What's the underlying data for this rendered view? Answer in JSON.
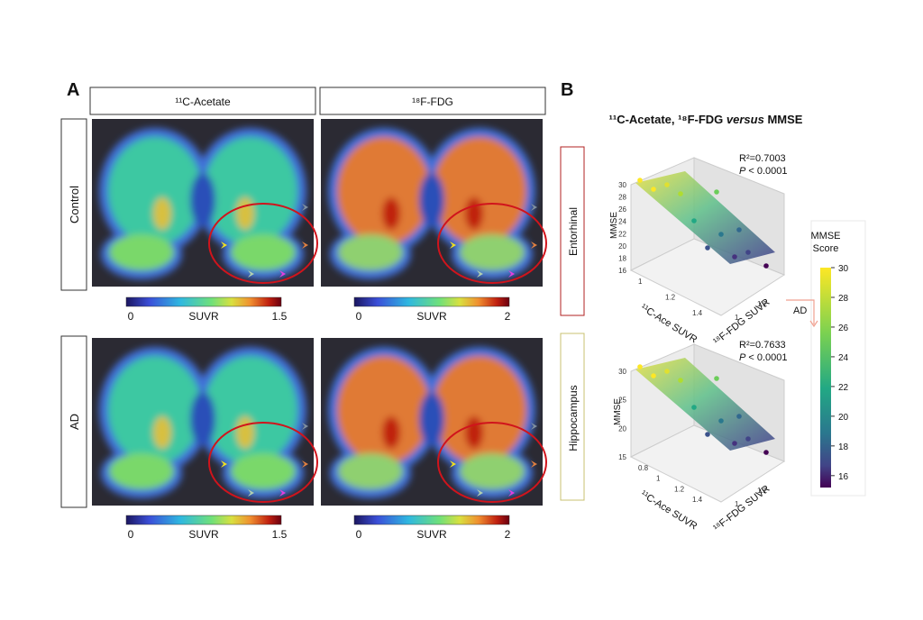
{
  "panel_a": {
    "label": "A",
    "columns": [
      "¹¹C-Acetate",
      "¹⁸F-FDG"
    ],
    "rows": [
      "Control",
      "AD"
    ],
    "colorbars": [
      [
        {
          "min": 0,
          "label": "SUVR",
          "max": 1.5
        },
        {
          "min": 0,
          "label": "SUVR",
          "max": 2
        }
      ],
      [
        {
          "min": 0,
          "label": "SUVR",
          "max": 1.5
        },
        {
          "min": 0,
          "label": "SUVR",
          "max": 2
        }
      ]
    ]
  },
  "panel_b": {
    "label": "B",
    "title": {
      "prefix": "¹¹C-Acetate, ¹⁸F-FDG ",
      "italic": "versus",
      "suffix": " MMSE"
    },
    "plots": [
      {
        "region": "Entorhinal",
        "r2": "R²=0.7003",
        "p_italic": "P",
        "p_rest": " < 0.0001",
        "z_label": "MMSE",
        "x_label": "¹¹C-Ace SUVR",
        "y_label": "¹⁸F-FDG SUVR",
        "z_ticks": [
          30,
          28,
          26,
          24,
          22,
          20,
          18,
          16
        ],
        "x_ticks": [
          1,
          1.2,
          1.4
        ],
        "y_ticks": [
          1,
          1.2
        ]
      },
      {
        "region": "Hippocampus",
        "r2": "R²=0.7633",
        "p_italic": "P",
        "p_rest": " < 0.0001",
        "z_label": "MMSE",
        "x_label": "¹¹C-Ace SUVR",
        "y_label": "¹⁸F-FDG SUVR",
        "z_ticks": [
          30,
          25,
          20,
          15
        ],
        "x_ticks": [
          0.8,
          1,
          1.2,
          1.4
        ],
        "y_ticks": [
          1,
          1.2
        ]
      }
    ],
    "colorbar": {
      "title_line1": "MMSE",
      "title_line2": "Score",
      "lim": [
        15.2,
        30
      ],
      "ticks": [
        30,
        28,
        26,
        24,
        22,
        20,
        18,
        16
      ],
      "annotation": "AD"
    }
  }
}
